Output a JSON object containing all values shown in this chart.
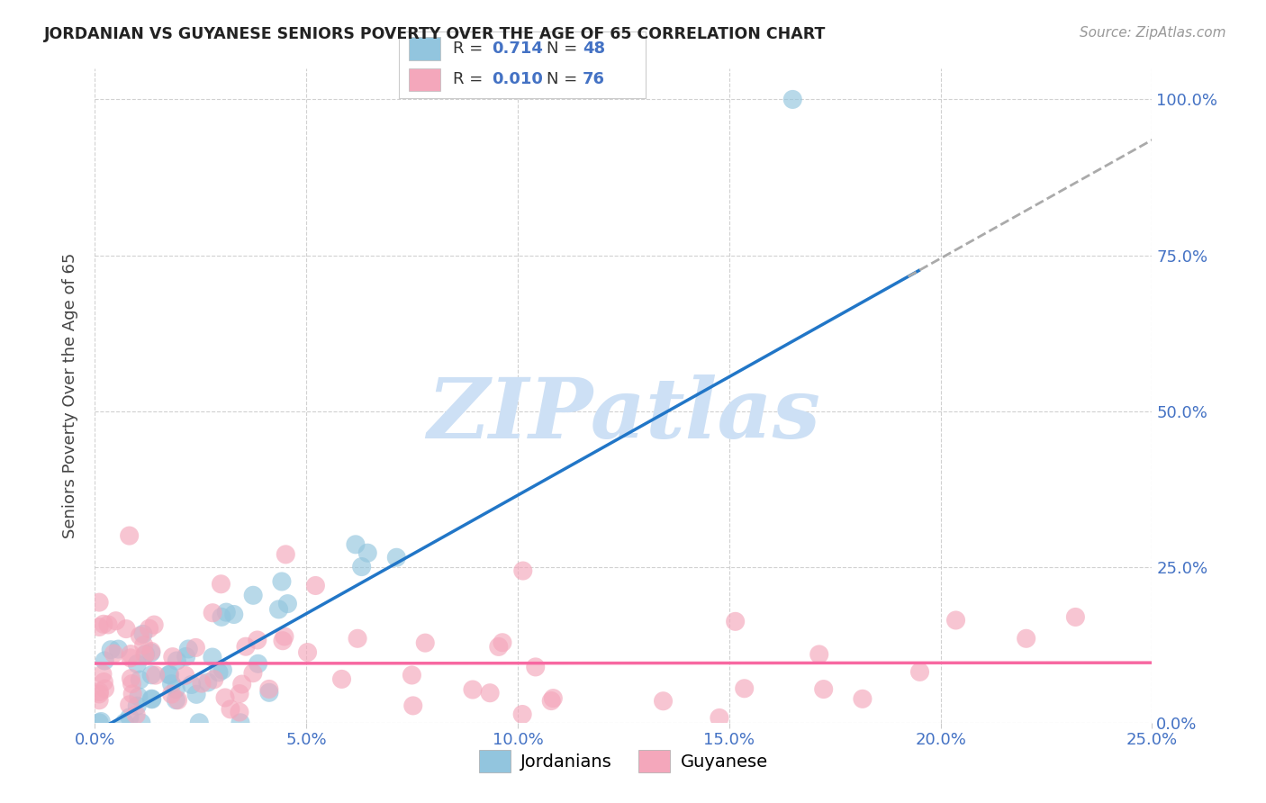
{
  "title": "JORDANIAN VS GUYANESE SENIORS POVERTY OVER THE AGE OF 65 CORRELATION CHART",
  "source": "Source: ZipAtlas.com",
  "ylabel": "Seniors Poverty Over the Age of 65",
  "xlim": [
    0,
    0.25
  ],
  "ylim": [
    0,
    1.05
  ],
  "yticks": [
    0,
    0.25,
    0.5,
    0.75,
    1.0
  ],
  "ytick_labels_right": [
    "0.0%",
    "25.0%",
    "50.0%",
    "75.0%",
    "100.0%"
  ],
  "xticks": [
    0,
    0.05,
    0.1,
    0.15,
    0.2,
    0.25
  ],
  "xtick_labels": [
    "0.0%",
    "5.0%",
    "10.0%",
    "15.0%",
    "20.0%",
    "25.0%"
  ],
  "legend_R1": "0.714",
  "legend_N1": "48",
  "legend_R2": "0.010",
  "legend_N2": "76",
  "jordanian_color": "#92c5de",
  "guyanese_color": "#f4a7bb",
  "trend_jordan_color": "#2176c7",
  "trend_guyana_color": "#f768a1",
  "axis_label_color": "#4472C4",
  "title_color": "#222222",
  "background_color": "#ffffff",
  "watermark_color": "#cde0f5",
  "grid_color": "#cccccc",
  "jordanians_label": "Jordanians",
  "guyanese_label": "Guyanese"
}
